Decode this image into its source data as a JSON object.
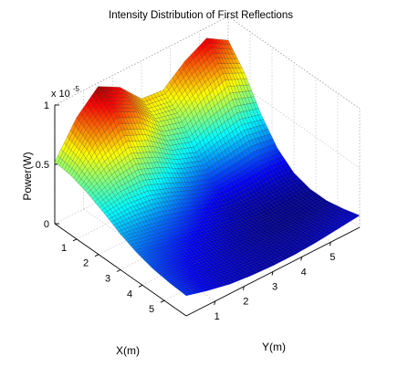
{
  "chart_data": {
    "type": "surface",
    "title": "Intensity Distribution of First Reflections",
    "xlabel": "X(m)",
    "ylabel": "Y(m)",
    "zlabel": "Power(W)",
    "z_exponent_label": "x 10",
    "z_exponent": "-5",
    "x_ticks": [
      "1",
      "2",
      "3",
      "4",
      "5"
    ],
    "y_ticks": [
      "1",
      "2",
      "3",
      "4",
      "5"
    ],
    "z_ticks": [
      "0",
      "0.5",
      "1"
    ],
    "xlim": [
      0,
      6
    ],
    "ylim": [
      0,
      6
    ],
    "zlim": [
      0,
      1
    ],
    "z_scale_factor": 1e-05,
    "grid": true,
    "colormap": "jet",
    "grid_x": [
      0,
      0.75,
      1.5,
      2.25,
      3,
      3.75,
      4.5,
      5.25,
      6
    ],
    "grid_y": [
      0,
      0.75,
      1.5,
      2.25,
      3,
      3.75,
      4.5,
      5.25,
      6
    ],
    "z_values": [
      [
        0.52,
        0.8,
        0.97,
        0.87,
        0.68,
        0.66,
        0.81,
        0.91,
        0.8
      ],
      [
        0.5,
        0.72,
        0.85,
        0.76,
        0.58,
        0.53,
        0.64,
        0.71,
        0.62
      ],
      [
        0.45,
        0.55,
        0.6,
        0.52,
        0.4,
        0.33,
        0.38,
        0.42,
        0.37
      ],
      [
        0.38,
        0.4,
        0.38,
        0.31,
        0.23,
        0.17,
        0.18,
        0.2,
        0.18
      ],
      [
        0.3,
        0.27,
        0.23,
        0.18,
        0.12,
        0.07,
        0.06,
        0.07,
        0.07
      ],
      [
        0.24,
        0.19,
        0.15,
        0.11,
        0.07,
        0.04,
        0.02,
        0.02,
        0.03
      ],
      [
        0.2,
        0.15,
        0.11,
        0.08,
        0.05,
        0.03,
        0.02,
        0.02,
        0.03
      ],
      [
        0.18,
        0.13,
        0.09,
        0.07,
        0.05,
        0.04,
        0.04,
        0.05,
        0.06
      ],
      [
        0.17,
        0.12,
        0.08,
        0.06,
        0.05,
        0.05,
        0.06,
        0.08,
        0.1
      ]
    ]
  }
}
